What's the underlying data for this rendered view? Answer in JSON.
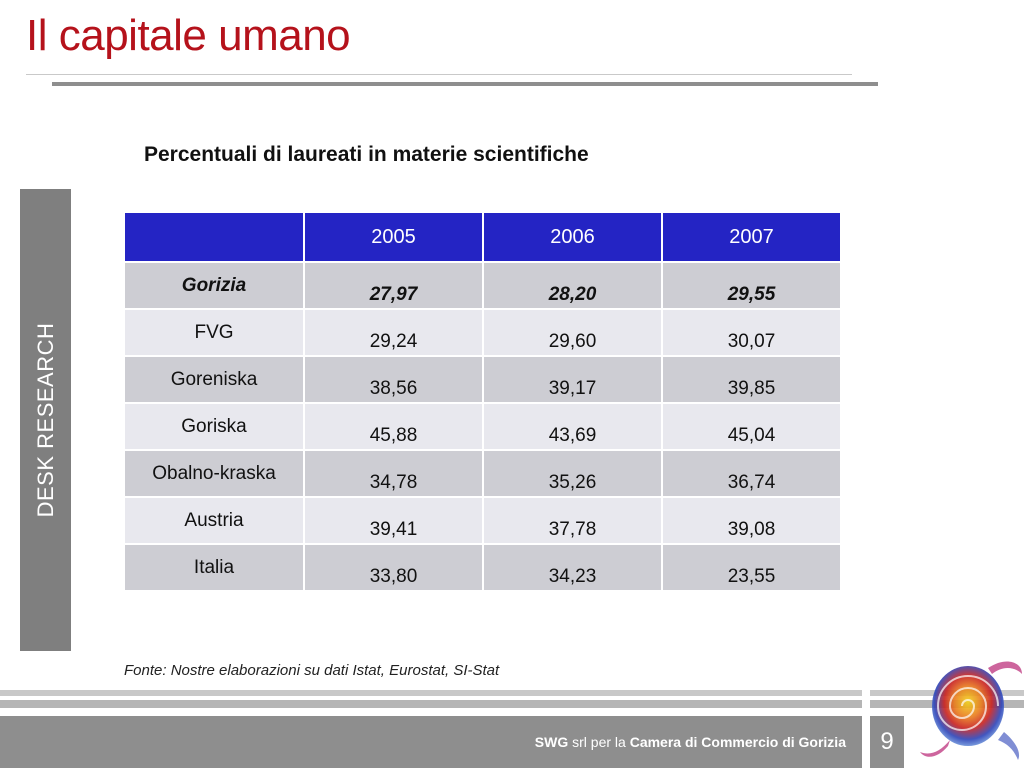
{
  "slide": {
    "title": "Il capitale umano",
    "side_label": "DESK RESEARCH",
    "subtitle": "Percentuali di laureati in materie scientifiche",
    "source": "Fonte: Nostre elaborazioni su dati Istat, Eurostat, SI-Stat",
    "page_number": "9"
  },
  "table": {
    "headers": [
      "",
      "2005",
      "2006",
      "2007"
    ],
    "rows": [
      {
        "label": "Gorizia",
        "values": [
          "27,97",
          "28,20",
          "29,55"
        ]
      },
      {
        "label": "FVG",
        "values": [
          "29,24",
          "29,60",
          "30,07"
        ]
      },
      {
        "label": "Goreniska",
        "values": [
          "38,56",
          "39,17",
          "39,85"
        ]
      },
      {
        "label": "Goriska",
        "values": [
          "45,88",
          "43,69",
          "45,04"
        ]
      },
      {
        "label": "Obalno-kraska",
        "values": [
          "34,78",
          "35,26",
          "36,74"
        ]
      },
      {
        "label": "Austria",
        "values": [
          "39,41",
          "37,78",
          "39,08"
        ]
      },
      {
        "label": "Italia",
        "values": [
          "33,80",
          "34,23",
          "23,55"
        ]
      }
    ]
  },
  "footer": {
    "brand": "SWG",
    "middle": " srl per la ",
    "client": "Camera di Commercio di Gorizia"
  },
  "colors": {
    "title": "#b5121b",
    "header_fill": "#2424c4",
    "row_dark": "#cdcdd3",
    "row_light": "#e8e8ee",
    "bars": "#8e8e8e"
  }
}
